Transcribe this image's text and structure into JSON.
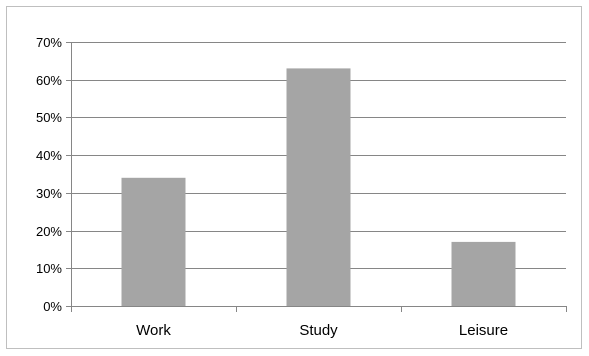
{
  "chart_data": {
    "type": "bar",
    "categories": [
      "Work",
      "Study",
      "Leisure"
    ],
    "values": [
      34,
      63,
      17
    ],
    "value_format": "percent",
    "title": "",
    "xlabel": "",
    "ylabel": "",
    "ylim": [
      0,
      70
    ],
    "ytick_step": 10,
    "yticks": [
      "0%",
      "10%",
      "20%",
      "30%",
      "40%",
      "50%",
      "60%",
      "70%"
    ],
    "grid": true,
    "legend": "none",
    "colors": {
      "bar": "#a5a5a5",
      "grid": "#868686",
      "axis": "#868686",
      "frame": "#bfbfbf"
    }
  }
}
